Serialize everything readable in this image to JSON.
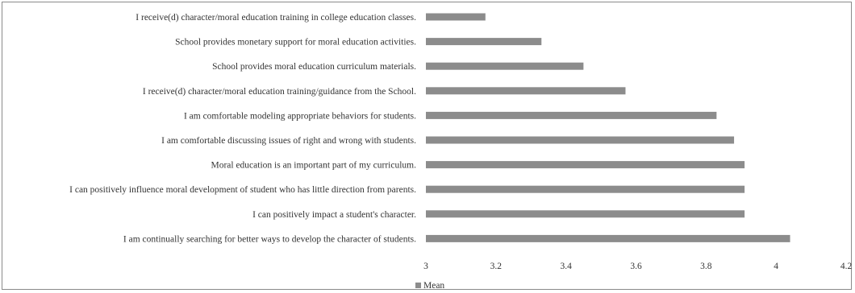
{
  "chart_data": {
    "type": "bar",
    "orientation": "horizontal",
    "categories": [
      "I receive(d) character/moral education training in college education classes.",
      "School provides monetary support for moral education activities.",
      "School provides moral education curriculum materials.",
      "I receive(d) character/moral education training/guidance from the School.",
      "I am comfortable modeling appropriate behaviors for students.",
      "I am comfortable discussing issues of right and wrong with students.",
      "Moral education is an important part of my curriculum.",
      "I can positively influence moral development of student who has little direction from parents.",
      "I can positively impact a student's character.",
      "I am continually searching for better ways to develop the character of students."
    ],
    "series": [
      {
        "name": "Mean",
        "values": [
          3.17,
          3.33,
          3.45,
          3.57,
          3.83,
          3.88,
          3.91,
          3.91,
          3.91,
          4.04
        ],
        "color": "#8c8c8c"
      }
    ],
    "xlim": [
      3,
      4.2
    ],
    "xticks": [
      "3",
      "3.2",
      "3.4",
      "3.6",
      "3.8",
      "4",
      "4.2"
    ],
    "xtick_values": [
      3,
      3.2,
      3.4,
      3.6,
      3.8,
      4,
      4.2
    ],
    "grid": false,
    "legend": {
      "position": "bottom",
      "label": "Mean"
    }
  }
}
